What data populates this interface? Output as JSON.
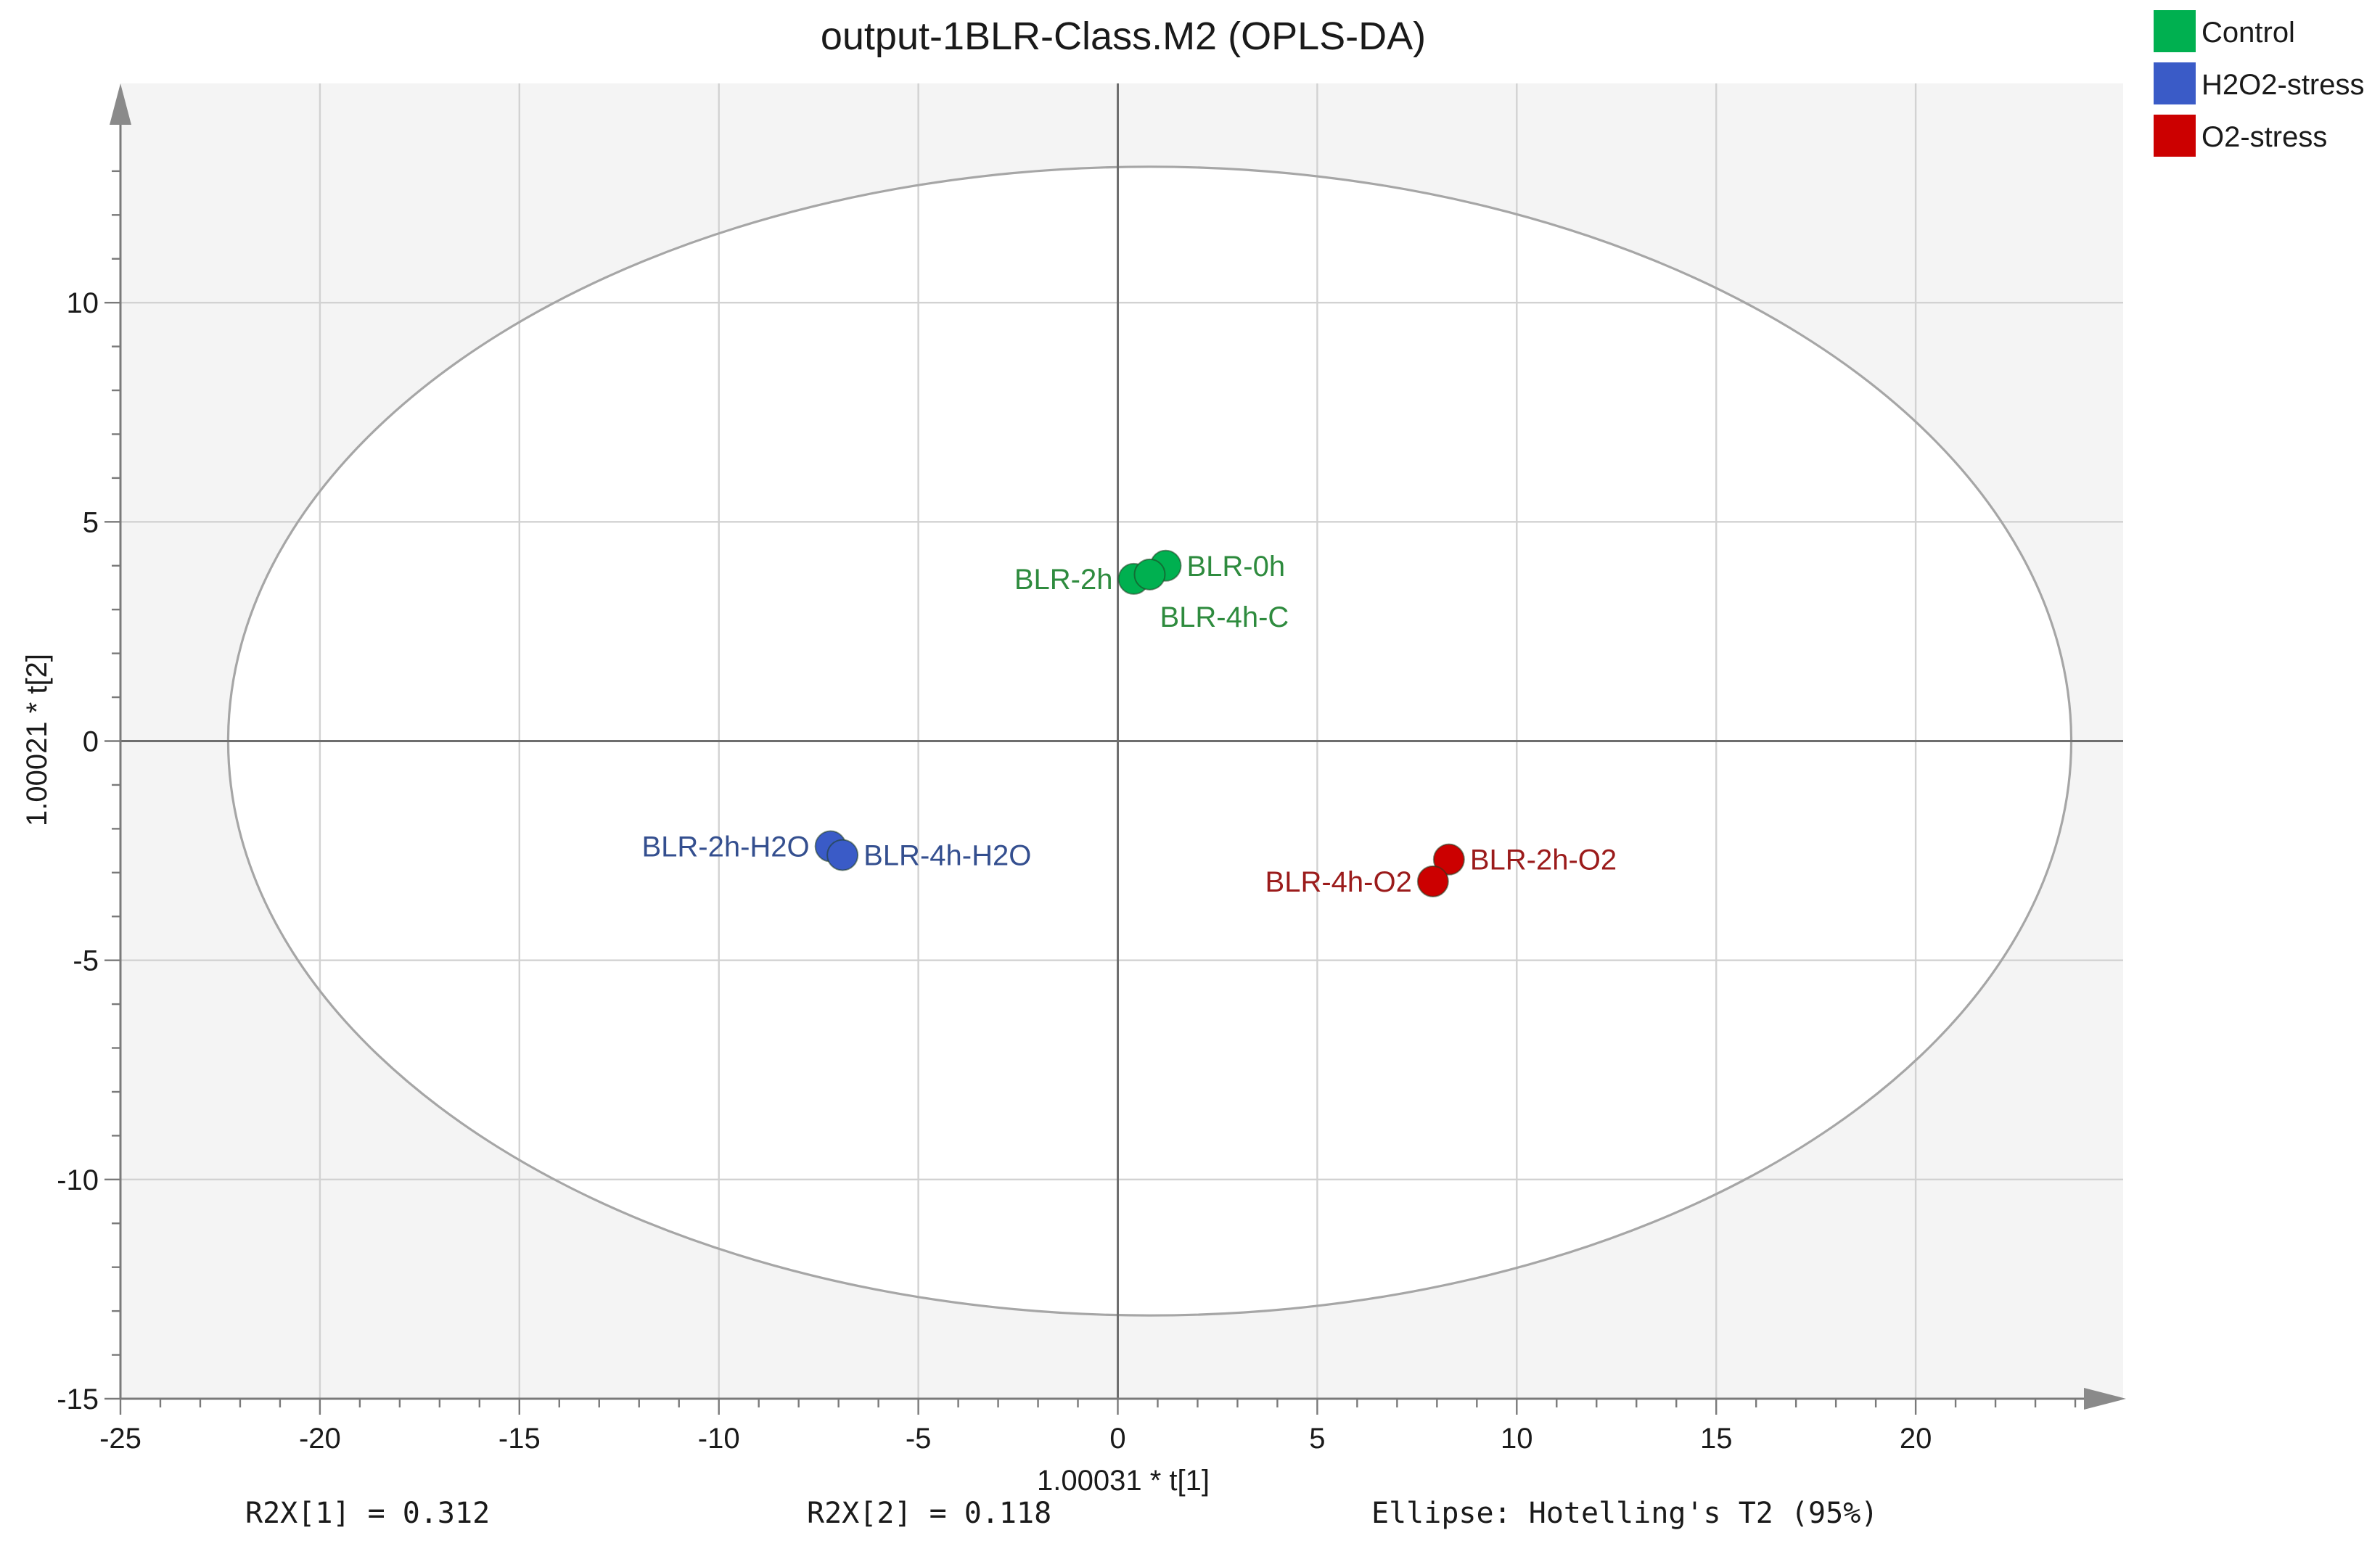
{
  "chart_data": {
    "type": "scatter",
    "title": "output-1BLR-Class.M2 (OPLS-DA)",
    "xlabel": "1.00031 * t[1]",
    "ylabel": "1.00021 * t[2]",
    "xlim": [
      -25,
      25
    ],
    "ylim": [
      -15,
      15
    ],
    "xticks": [
      -25,
      -20,
      -15,
      -10,
      -5,
      0,
      5,
      10,
      15,
      20
    ],
    "yticks": [
      -15,
      -10,
      -5,
      0,
      5,
      10
    ],
    "xtick_labels": [
      "-25",
      "-20",
      "-15",
      "-10",
      "-5",
      "0",
      "5",
      "10",
      "15",
      "20"
    ],
    "ytick_labels": [
      "-15",
      "-10",
      "-5",
      "0",
      "5",
      "10"
    ],
    "grid": true,
    "legend_position": "top-right",
    "ellipse": {
      "label": "Hotelling's T2 (95%)",
      "center": [
        0.8,
        0
      ],
      "semi_axes": [
        23.1,
        13.1
      ]
    },
    "series": [
      {
        "name": "Control",
        "color": "#00b050",
        "label_color": "#2e8b3e",
        "points": [
          {
            "label": "BLR-0h",
            "x": 1.2,
            "y": 4.0,
            "label_pos": "right"
          },
          {
            "label": "BLR-2h",
            "x": 0.4,
            "y": 3.7,
            "label_pos": "left"
          },
          {
            "label": "BLR-4h-C",
            "x": 0.8,
            "y": 3.8,
            "label_pos": "below-right"
          }
        ]
      },
      {
        "name": "H2O2-stress",
        "color": "#3a5bc7",
        "label_color": "#344f8f",
        "points": [
          {
            "label": "BLR-2h-H2O",
            "x": -7.2,
            "y": -2.4,
            "label_pos": "left"
          },
          {
            "label": "BLR-4h-H2O",
            "x": -6.9,
            "y": -2.6,
            "label_pos": "right"
          }
        ]
      },
      {
        "name": "O2-stress",
        "color": "#cc0000",
        "label_color": "#9b1b1b",
        "points": [
          {
            "label": "BLR-2h-O2",
            "x": 8.3,
            "y": -2.7,
            "label_pos": "right"
          },
          {
            "label": "BLR-4h-O2",
            "x": 7.9,
            "y": -3.2,
            "label_pos": "left"
          }
        ]
      }
    ],
    "footnotes": {
      "r2x1": "R2X[1] = 0.312",
      "r2x2": "R2X[2] = 0.118",
      "ellipse": "Ellipse: Hotelling's T2 (95%)"
    }
  }
}
